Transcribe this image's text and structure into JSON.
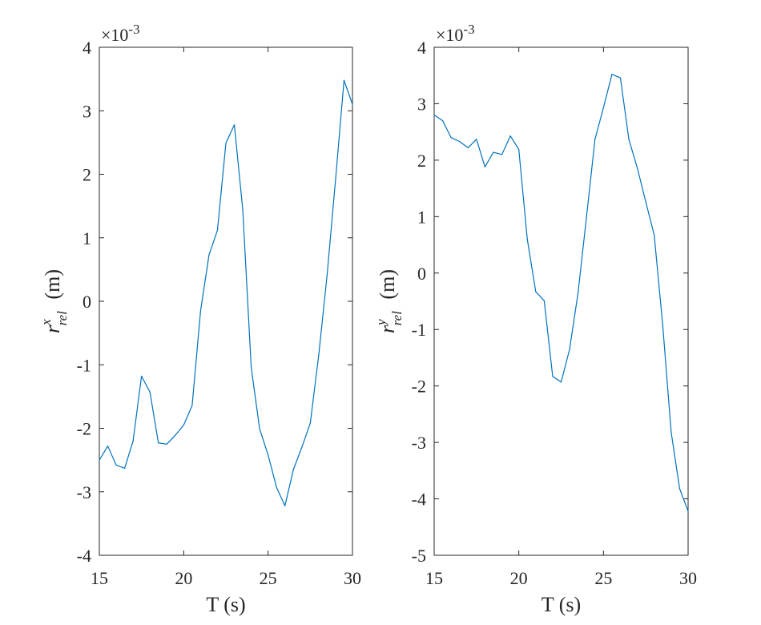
{
  "chart_data": [
    {
      "type": "line",
      "xlabel": "T (s)",
      "ylabel": {
        "symbol": "r",
        "superscript": "x",
        "subscript": "rel",
        "unit": "(m)"
      },
      "exponent": {
        "prefix": "×10",
        "power": "-3"
      },
      "xlim": [
        15,
        30
      ],
      "ylim": [
        -4,
        4
      ],
      "x_ticks": [
        15,
        20,
        25,
        30
      ],
      "y_ticks": [
        -4,
        -3,
        -2,
        -1,
        0,
        1,
        2,
        3,
        4
      ],
      "grid": false,
      "series": [
        {
          "color": "#0072BD",
          "x": [
            15,
            15.5,
            16,
            16.5,
            17,
            17.5,
            18,
            18.5,
            19,
            19.5,
            20,
            20.5,
            21,
            21.5,
            22,
            22.5,
            23,
            23.5,
            24,
            24.5,
            25,
            25.5,
            26,
            26.5,
            27,
            27.5,
            28,
            28.5,
            29,
            29.5,
            30
          ],
          "y": [
            -2.5,
            -2.28,
            -2.58,
            -2.63,
            -2.2,
            -1.18,
            -1.43,
            -2.23,
            -2.25,
            -2.11,
            -1.95,
            -1.64,
            -0.15,
            0.73,
            1.12,
            2.49,
            2.78,
            1.44,
            -1.04,
            -2.01,
            -2.42,
            -2.93,
            -3.22,
            -2.65,
            -2.3,
            -1.92,
            -0.85,
            0.42,
            1.92,
            3.48,
            3.1
          ]
        }
      ]
    },
    {
      "type": "line",
      "xlabel": "T (s)",
      "ylabel": {
        "symbol": "r",
        "superscript": "y",
        "subscript": "rel",
        "unit": "(m)"
      },
      "exponent": {
        "prefix": "×10",
        "power": "-3"
      },
      "xlim": [
        15,
        30
      ],
      "ylim": [
        -5,
        4
      ],
      "x_ticks": [
        15,
        20,
        25,
        30
      ],
      "y_ticks": [
        -5,
        -4,
        -3,
        -2,
        -1,
        0,
        1,
        2,
        3,
        4
      ],
      "grid": false,
      "series": [
        {
          "color": "#0072BD",
          "x": [
            15,
            15.5,
            16,
            16.5,
            17,
            17.5,
            18,
            18.5,
            19,
            19.5,
            20,
            20.5,
            21,
            21.5,
            22,
            22.5,
            23,
            23.5,
            24,
            24.5,
            25,
            25.5,
            26,
            26.5,
            27,
            27.5,
            28,
            28.5,
            29,
            29.5,
            30
          ],
          "y": [
            2.8,
            2.7,
            2.4,
            2.33,
            2.22,
            2.37,
            1.88,
            2.14,
            2.1,
            2.43,
            2.19,
            0.6,
            -0.33,
            -0.49,
            -1.83,
            -1.93,
            -1.35,
            -0.35,
            1.0,
            2.37,
            2.93,
            3.52,
            3.46,
            2.37,
            1.86,
            1.26,
            0.67,
            -0.92,
            -2.82,
            -3.82,
            -4.22
          ]
        }
      ]
    }
  ]
}
